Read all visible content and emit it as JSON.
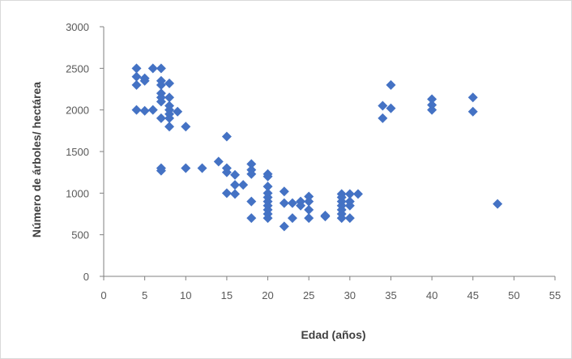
{
  "chart_data": {
    "type": "scatter",
    "title": "",
    "xlabel": "Edad (años)",
    "ylabel": "Número de árboles/ hectárea",
    "xlim": [
      0,
      55
    ],
    "ylim": [
      0,
      3000
    ],
    "x_ticks": [
      "0",
      "5",
      "10",
      "15",
      "20",
      "25",
      "30",
      "35",
      "40",
      "45",
      "50",
      "55"
    ],
    "y_ticks": [
      "0",
      "500",
      "1000",
      "1500",
      "2000",
      "2500",
      "3000"
    ],
    "grid": false,
    "legend": "none",
    "marker": "diamond",
    "color": "#4472C4",
    "points": [
      [
        4,
        2500
      ],
      [
        4,
        2400
      ],
      [
        4,
        2300
      ],
      [
        4,
        2000
      ],
      [
        5,
        2350
      ],
      [
        5,
        2380
      ],
      [
        5,
        1990
      ],
      [
        6,
        2500
      ],
      [
        6,
        2000
      ],
      [
        7,
        2500
      ],
      [
        7,
        2350
      ],
      [
        7,
        2300
      ],
      [
        7,
        2200
      ],
      [
        7,
        2150
      ],
      [
        7,
        2100
      ],
      [
        7,
        1900
      ],
      [
        7,
        1300
      ],
      [
        7,
        1270
      ],
      [
        8,
        2320
      ],
      [
        8,
        2150
      ],
      [
        8,
        2050
      ],
      [
        8,
        2000
      ],
      [
        8,
        1950
      ],
      [
        8,
        1900
      ],
      [
        8,
        1800
      ],
      [
        9,
        1980
      ],
      [
        10,
        1800
      ],
      [
        10,
        1300
      ],
      [
        12,
        1300
      ],
      [
        14,
        1380
      ],
      [
        15,
        1680
      ],
      [
        15,
        1300
      ],
      [
        15,
        1250
      ],
      [
        15,
        1000
      ],
      [
        16,
        1220
      ],
      [
        16,
        1100
      ],
      [
        16,
        990
      ],
      [
        17,
        1100
      ],
      [
        18,
        1350
      ],
      [
        18,
        1280
      ],
      [
        18,
        1230
      ],
      [
        18,
        900
      ],
      [
        18,
        700
      ],
      [
        20,
        1230
      ],
      [
        20,
        1200
      ],
      [
        20,
        1080
      ],
      [
        20,
        1000
      ],
      [
        20,
        950
      ],
      [
        20,
        900
      ],
      [
        20,
        850
      ],
      [
        20,
        800
      ],
      [
        20,
        750
      ],
      [
        20,
        700
      ],
      [
        22,
        1020
      ],
      [
        22,
        880
      ],
      [
        22,
        600
      ],
      [
        23,
        700
      ],
      [
        23,
        880
      ],
      [
        24,
        900
      ],
      [
        24,
        850
      ],
      [
        25,
        960
      ],
      [
        25,
        900
      ],
      [
        25,
        800
      ],
      [
        25,
        700
      ],
      [
        27,
        730
      ],
      [
        27,
        720
      ],
      [
        29,
        990
      ],
      [
        29,
        950
      ],
      [
        29,
        900
      ],
      [
        29,
        850
      ],
      [
        29,
        800
      ],
      [
        29,
        750
      ],
      [
        29,
        700
      ],
      [
        30,
        990
      ],
      [
        30,
        900
      ],
      [
        30,
        850
      ],
      [
        30,
        700
      ],
      [
        31,
        990
      ],
      [
        34,
        2050
      ],
      [
        34,
        1900
      ],
      [
        35,
        2300
      ],
      [
        35,
        2020
      ],
      [
        40,
        2130
      ],
      [
        40,
        2060
      ],
      [
        40,
        2000
      ],
      [
        45,
        2150
      ],
      [
        45,
        1980
      ],
      [
        48,
        870
      ]
    ]
  }
}
